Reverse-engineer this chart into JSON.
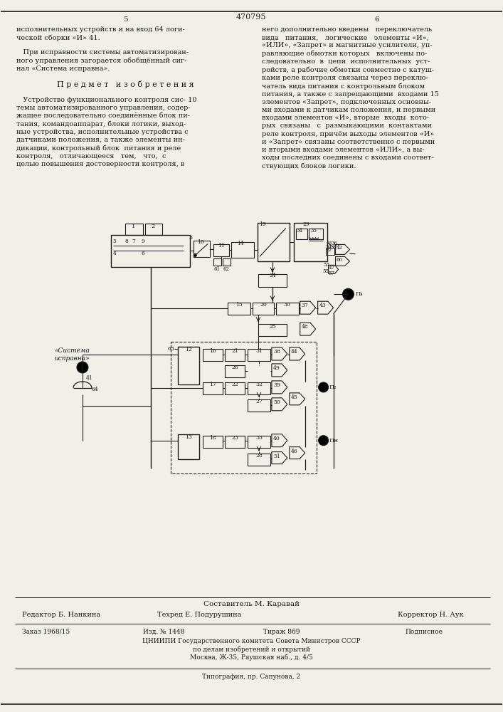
{
  "page_number": "470795",
  "col_left": "5",
  "col_right": "6",
  "text_left_1": "исполнительных устройств и на вход 64 логи-\nческой сборки «И» 41.",
  "text_left_2": "   При исправности системы автоматизирован-\nного управления загорается обобщённый сиг-\nнал «Система исправна».",
  "section_title": "П р е д м е т   и з о б р е т е н и я",
  "text_left_3": "   Устройство функционального контроля сис- 10\nтемы автоматизированного управления, содер-\nжащее последовательно соединённые блок пи-\nтания, командоаппарат, блоки логики, выход-\nные устройства, исполнительные устройства с\nдатчиками положения, а также элементы ин-\nдикации, контрольный блок  питания и реле\nконтроля,   отличающееся   тем,   что,  с\nцелью повышения достоверности контроля, в",
  "text_right_1": "него дополнительно введены   переключатель\nвида   питания,   логические   элементы «И»,\n«ИЛИ», «Запрет» и магнитные усилители, уп-\nравляющие обмотки которых   включены по-\nследовательно  в  цепи  исполнительных  уст-\nройств, а рабочие обмотки совместно с катуш-\nками реле контроля связаны через переклю-\nчатель вида питания с контрольным блоком\nпитания, а также с запрещающими  входами 15\nэлементов «Запрет», подключенных основны-\nми входами к датчикам положения, и первыми\nвходами элементов «И», вторые  входы  кото-\nрых  связаны   с  размыкающими  контактами\nреле контроля, причём выходы элементов «И»\nи «Запрет» связаны соответственно с первыми\nи вторыми входами элементов «ИЛИ», а вы-\nходы последних соединены с входами соответ-\nствующих блоков логики.",
  "footer_composer": "Составитель М. Каравай",
  "footer_editor": "Редактор Б. Нанкина",
  "footer_techred": "Техред Е. Подурушина",
  "footer_corrector": "Корректор Н. Аук",
  "footer_order": "Заказ 1968/15",
  "footer_izd": "Изд. № 1448",
  "footer_tirazh": "Тираж 869",
  "footer_podp": "Подписное",
  "footer_cniipi": "ЦНИИПИ Государственного комитета Совета Министров СССР\nпо делам изобретений и открытий\nМосква, Ж-35, Раушская наб., д. 4/5",
  "footer_tip": "Типография, пр. Сапунова, 2",
  "bg_color": "#f0efe8",
  "line_color": "#1a1a1a",
  "text_color": "#1a1a1a"
}
